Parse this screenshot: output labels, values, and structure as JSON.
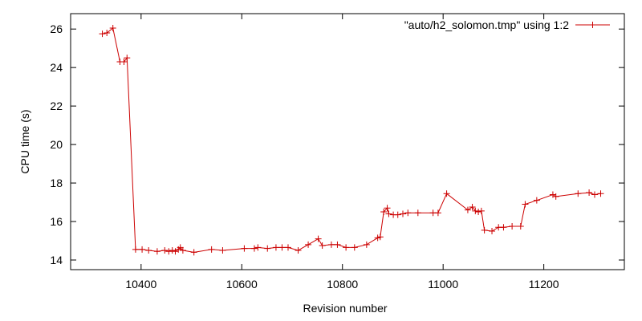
{
  "chart_data": {
    "type": "line",
    "xlabel": "Revision number",
    "ylabel": "CPU time (s)",
    "xlim": [
      10260,
      11360
    ],
    "ylim": [
      13.5,
      26.8
    ],
    "xticks": [
      10400,
      10600,
      10800,
      11000,
      11200
    ],
    "yticks": [
      14,
      16,
      18,
      20,
      22,
      24,
      26
    ],
    "grid": false,
    "legend_position": "top-right",
    "series": [
      {
        "name": "\"auto/h2_solomon.tmp\" using 1:2",
        "color": "#cc0000",
        "points": [
          [
            10323,
            25.75
          ],
          [
            10332,
            25.8
          ],
          [
            10344,
            26.05
          ],
          [
            10358,
            24.3
          ],
          [
            10366,
            24.3
          ],
          [
            10372,
            24.5
          ],
          [
            10389,
            14.55
          ],
          [
            10402,
            14.55
          ],
          [
            10415,
            14.5
          ],
          [
            10432,
            14.45
          ],
          [
            10447,
            14.5
          ],
          [
            10455,
            14.45
          ],
          [
            10462,
            14.5
          ],
          [
            10468,
            14.45
          ],
          [
            10474,
            14.55
          ],
          [
            10478,
            14.65
          ],
          [
            10483,
            14.5
          ],
          [
            10505,
            14.4
          ],
          [
            10540,
            14.55
          ],
          [
            10562,
            14.5
          ],
          [
            10605,
            14.6
          ],
          [
            10625,
            14.6
          ],
          [
            10632,
            14.65
          ],
          [
            10651,
            14.6
          ],
          [
            10668,
            14.65
          ],
          [
            10680,
            14.65
          ],
          [
            10692,
            14.65
          ],
          [
            10712,
            14.5
          ],
          [
            10732,
            14.8
          ],
          [
            10752,
            15.1
          ],
          [
            10760,
            14.75
          ],
          [
            10778,
            14.8
          ],
          [
            10790,
            14.8
          ],
          [
            10807,
            14.65
          ],
          [
            10824,
            14.65
          ],
          [
            10848,
            14.8
          ],
          [
            10870,
            15.15
          ],
          [
            10875,
            15.2
          ],
          [
            10882,
            16.5
          ],
          [
            10889,
            16.7
          ],
          [
            10892,
            16.4
          ],
          [
            10901,
            16.35
          ],
          [
            10910,
            16.35
          ],
          [
            10920,
            16.4
          ],
          [
            10930,
            16.45
          ],
          [
            10950,
            16.45
          ],
          [
            10980,
            16.45
          ],
          [
            10990,
            16.45
          ],
          [
            11007,
            17.45
          ],
          [
            11049,
            16.6
          ],
          [
            11058,
            16.75
          ],
          [
            11064,
            16.55
          ],
          [
            11070,
            16.5
          ],
          [
            11076,
            16.55
          ],
          [
            11082,
            15.55
          ],
          [
            11097,
            15.5
          ],
          [
            11110,
            15.7
          ],
          [
            11120,
            15.7
          ],
          [
            11137,
            15.75
          ],
          [
            11154,
            15.75
          ],
          [
            11163,
            16.9
          ],
          [
            11186,
            17.1
          ],
          [
            11218,
            17.4
          ],
          [
            11224,
            17.3
          ],
          [
            11268,
            17.45
          ],
          [
            11290,
            17.5
          ],
          [
            11301,
            17.4
          ],
          [
            11313,
            17.45
          ]
        ]
      }
    ]
  }
}
